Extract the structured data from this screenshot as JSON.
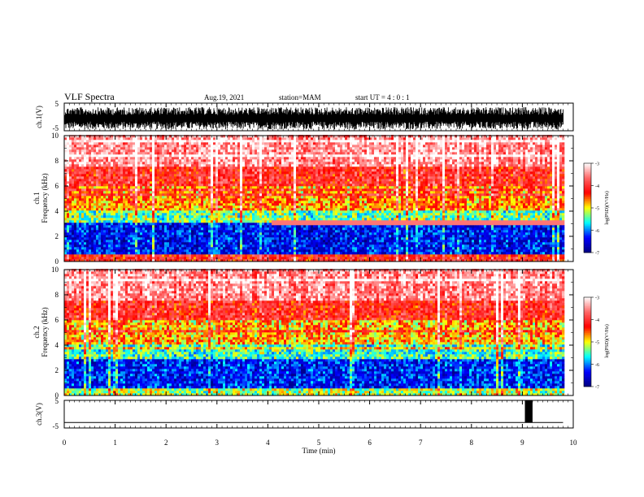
{
  "header": {
    "title": "VLF Spectra",
    "date": "Aug.19, 2021",
    "station": "station=MAM",
    "start_time": "start UT =  4 : 0 : 1"
  },
  "chart_data": [
    {
      "type": "line",
      "panel": "ch1-waveform",
      "ylabel": "ch.1(V)",
      "ylim": [
        -5,
        5
      ],
      "yticks": [
        "5",
        "-5"
      ],
      "description_values": {
        "typical_amplitude_V": [
          -4.5,
          3.5
        ]
      }
    },
    {
      "type": "heatmap",
      "panel": "ch1-spectrogram",
      "ylabel_line1": "ch.1",
      "ylabel_line2": "Frequency (kHz)",
      "xlim_min": [
        0,
        9.8
      ],
      "ylim_khz": [
        0,
        10
      ],
      "yticks": [
        "0",
        "2",
        "4",
        "6",
        "8",
        "10"
      ],
      "bands": [
        {
          "from_khz": 0,
          "to_khz": 0.5,
          "level": -4.2
        },
        {
          "from_khz": 0.5,
          "to_khz": 3,
          "level": -6.4
        },
        {
          "from_khz": 3,
          "to_khz": 4,
          "level": -5.4
        },
        {
          "from_khz": 4,
          "to_khz": 6,
          "level": -4.7
        },
        {
          "from_khz": 6,
          "to_khz": 7.5,
          "level": -4.1
        },
        {
          "from_khz": 7.5,
          "to_khz": 10,
          "level": -3.5
        }
      ],
      "colorbar": {
        "label": "log(PSD)(V²/Hz)",
        "min": -7,
        "max": -3,
        "ticks": [
          "-3",
          "-4",
          "-5",
          "-6",
          "-7"
        ]
      }
    },
    {
      "type": "heatmap",
      "panel": "ch2-spectrogram",
      "ylabel_line1": "ch.2",
      "ylabel_line2": "Frequency (kHz)",
      "xlim_min": [
        0,
        9.8
      ],
      "ylim_khz": [
        0,
        10
      ],
      "yticks": [
        "0",
        "2",
        "4",
        "6",
        "8",
        "10"
      ],
      "bands": [
        {
          "from_khz": 0,
          "to_khz": 0.5,
          "level": -5.2
        },
        {
          "from_khz": 0.5,
          "to_khz": 2.8,
          "level": -6.3
        },
        {
          "from_khz": 2.8,
          "to_khz": 4.2,
          "level": -5.5
        },
        {
          "from_khz": 4.2,
          "to_khz": 6,
          "level": -4.8
        },
        {
          "from_khz": 6,
          "to_khz": 7.5,
          "level": -4.1
        },
        {
          "from_khz": 7.5,
          "to_khz": 10,
          "level": -3.5
        }
      ],
      "colorbar": {
        "label": "log(PSD)(V²/Hz)",
        "min": -7,
        "max": -3,
        "ticks": [
          "-3",
          "-4",
          "-5",
          "-6",
          "-7"
        ]
      }
    },
    {
      "type": "line",
      "panel": "ch3-waveform",
      "ylabel": "ch.3(V)",
      "ylim": [
        -5,
        5
      ],
      "yticks": [
        "5",
        "-5"
      ],
      "baseline_V": -3,
      "pulse": {
        "from_min": 9.05,
        "to_min": 9.2,
        "high_V": 5
      }
    }
  ],
  "xaxis": {
    "label": "Time (min)",
    "range": [
      0,
      10
    ],
    "ticks": [
      "0",
      "1",
      "2",
      "3",
      "4",
      "5",
      "6",
      "7",
      "8",
      "9",
      "10"
    ]
  },
  "colors": {
    "frame": "#000000",
    "waveform": "#000000",
    "colormap": [
      "#000080",
      "#0000ff",
      "#00ffff",
      "#ffff00",
      "#ff0000",
      "#ff6666",
      "#ffffff"
    ]
  }
}
